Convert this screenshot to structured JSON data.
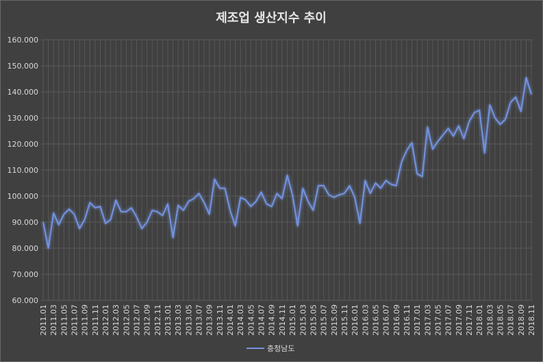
{
  "chart_data": {
    "type": "line",
    "title": "제조업 생산지수 추이",
    "categories": [
      "2011.01",
      null,
      "2011.03",
      null,
      "2011.05",
      null,
      "2011.07",
      null,
      "2011.09",
      null,
      "2011.11",
      null,
      "2012.01",
      null,
      "2012.03",
      null,
      "2012.05",
      null,
      "2012.07",
      null,
      "2012.09",
      null,
      "2012.11",
      null,
      "2013.01",
      null,
      "2013.03",
      null,
      "2013.05",
      null,
      "2013.07",
      null,
      "2013.09",
      null,
      "2013.11",
      null,
      "2014.01",
      null,
      "2014.03",
      null,
      "2014.05",
      null,
      "2014.07",
      null,
      "2014.09",
      null,
      "2014.11",
      null,
      "2015.01",
      null,
      "2015.03",
      null,
      "2015.05",
      null,
      "2015.07",
      null,
      "2015.09",
      null,
      "2015.11",
      null,
      "2016.01",
      null,
      "2016.03",
      null,
      "2016.05",
      null,
      "2016.07",
      null,
      "2016.09",
      null,
      "2016.11",
      null,
      "2017.01",
      null,
      "2017.03",
      null,
      "2017.05",
      null,
      "2017.07",
      null,
      "2017.09",
      null,
      "2017.11",
      null,
      "2018.01",
      null,
      "2018.03",
      null,
      "2018.05",
      null,
      "2018.07",
      null,
      "2018.09",
      null,
      "2018.11"
    ],
    "series": [
      {
        "name": "충청남도",
        "color": "#7393e0",
        "values": [
          90,
          80,
          93.5,
          89,
          93,
          95,
          93,
          87.5,
          91,
          97.5,
          95.5,
          96,
          89.5,
          91,
          98.5,
          94,
          94,
          95.5,
          92,
          87.5,
          90,
          94.5,
          94,
          92.5,
          97,
          84,
          96.5,
          94.5,
          98,
          99,
          101,
          97.5,
          93,
          106.5,
          103,
          103,
          94.5,
          88.5,
          99.5,
          98.5,
          96,
          98,
          101.5,
          97,
          96,
          101,
          99,
          108,
          100.5,
          88.5,
          103,
          98,
          94.5,
          104,
          104,
          100.5,
          99.5,
          100.5,
          101,
          104,
          99.5,
          89.5,
          106,
          101,
          105,
          103,
          106,
          104.5,
          104,
          113,
          117.5,
          120.5,
          108.5,
          107.5,
          126.5,
          118,
          121,
          123.5,
          126,
          123,
          127,
          122,
          128.5,
          132,
          133,
          116.5,
          135,
          130,
          127.5,
          129.5,
          136,
          138,
          132.5,
          145.5,
          139
        ]
      }
    ],
    "ylim": [
      60,
      160
    ],
    "yticks": [
      {
        "value": 60,
        "label": "60.000"
      },
      {
        "value": 70,
        "label": "70.000"
      },
      {
        "value": 80,
        "label": "80.000"
      },
      {
        "value": 90,
        "label": "90.000"
      },
      {
        "value": 100,
        "label": "100.000"
      },
      {
        "value": 110,
        "label": "110.000"
      },
      {
        "value": 120,
        "label": "120.000"
      },
      {
        "value": 130,
        "label": "130.000"
      },
      {
        "value": 140,
        "label": "140.000"
      },
      {
        "value": 150,
        "label": "150.000"
      },
      {
        "value": 160,
        "label": "160.000"
      }
    ],
    "grid": true,
    "legend": "bottom"
  }
}
